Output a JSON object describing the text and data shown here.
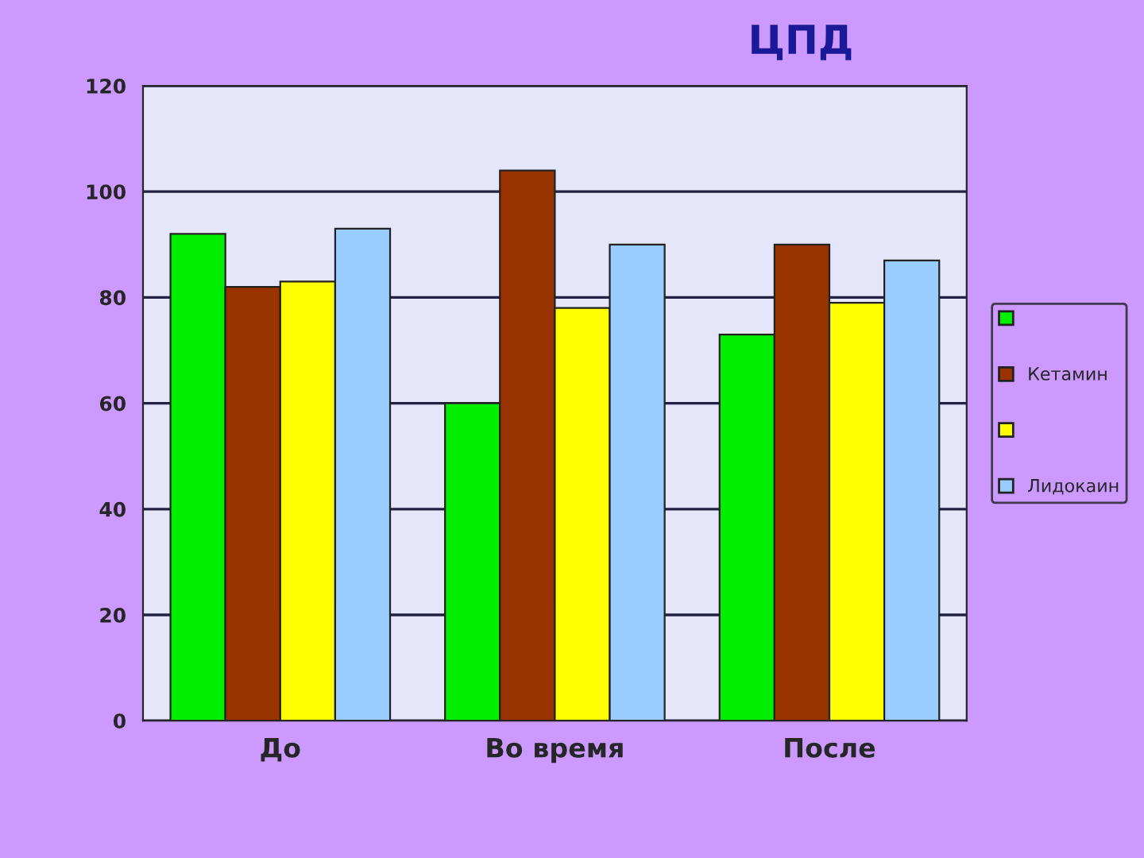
{
  "chart_data": {
    "type": "bar",
    "title": "ЦПД",
    "categories": [
      "До",
      "Во время",
      "После"
    ],
    "series": [
      {
        "color": "#00ee00",
        "values": [
          92,
          60,
          73
        ]
      },
      {
        "name": "Кетамин",
        "color": "#993300",
        "values": [
          82,
          104,
          90
        ]
      },
      {
        "color": "#ffff00",
        "values": [
          83,
          78,
          79
        ]
      },
      {
        "name": "Лидокаин",
        "color": "#99ccff",
        "values": [
          93,
          90,
          87
        ]
      }
    ],
    "ylim": [
      0,
      120
    ],
    "yticks": [
      0,
      20,
      40,
      60,
      80,
      100,
      120
    ],
    "grid": "y",
    "legend": "right"
  }
}
